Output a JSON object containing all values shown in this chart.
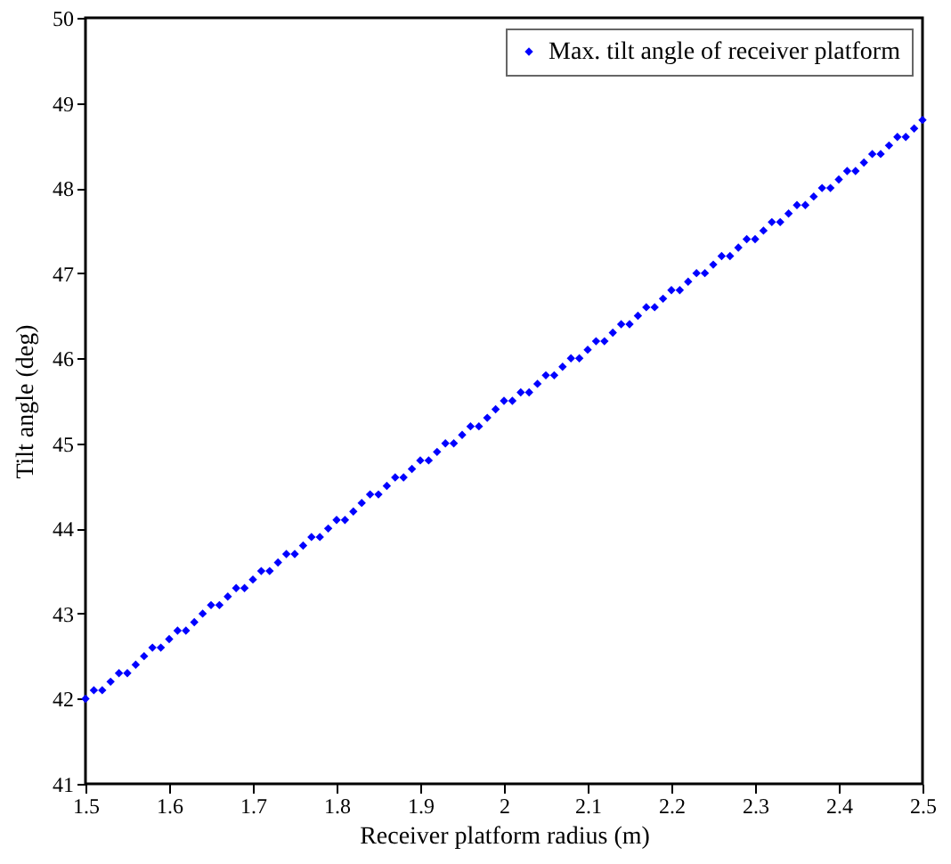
{
  "chart_data": {
    "type": "scatter",
    "xlabel": "Receiver platform radius (m)",
    "ylabel": "Tilt angle (deg)",
    "xlim": [
      1.5,
      2.5
    ],
    "xticks": [
      1.5,
      1.6,
      1.7,
      1.8,
      1.9,
      2,
      2.1,
      2.2,
      2.3,
      2.4,
      2.5
    ],
    "ylim": [
      41,
      50
    ],
    "yticks": [
      41,
      42,
      43,
      44,
      45,
      46,
      47,
      48,
      49,
      50
    ],
    "x": [
      1.5,
      1.51,
      1.52,
      1.53,
      1.54,
      1.55,
      1.56,
      1.57,
      1.58,
      1.59,
      1.6,
      1.61,
      1.62,
      1.63,
      1.64,
      1.65,
      1.66,
      1.67,
      1.68,
      1.69,
      1.7,
      1.71,
      1.72,
      1.73,
      1.74,
      1.75,
      1.76,
      1.77,
      1.78,
      1.79,
      1.8,
      1.81,
      1.82,
      1.83,
      1.84,
      1.85,
      1.86,
      1.87,
      1.88,
      1.89,
      1.9,
      1.91,
      1.92,
      1.93,
      1.94,
      1.95,
      1.96,
      1.97,
      1.98,
      1.99,
      2,
      2.01,
      2.02,
      2.03,
      2.04,
      2.05,
      2.06,
      2.07,
      2.08,
      2.09,
      2.1,
      2.11,
      2.12,
      2.13,
      2.14,
      2.15,
      2.16,
      2.17,
      2.18,
      2.19,
      2.2,
      2.21,
      2.22,
      2.23,
      2.24,
      2.25,
      2.26,
      2.27,
      2.28,
      2.29,
      2.3,
      2.31,
      2.32,
      2.33,
      2.34,
      2.35,
      2.36,
      2.37,
      2.38,
      2.39,
      2.4,
      2.41,
      2.42,
      2.43,
      2.44,
      2.45,
      2.46,
      2.47,
      2.48,
      2.49,
      2.5
    ],
    "series": [
      {
        "name": "Max. tilt angle of receiver platform",
        "color": "#0000ff",
        "values": [
          42.0,
          42.1,
          42.1,
          42.2,
          42.3,
          42.3,
          42.4,
          42.5,
          42.6,
          42.6,
          42.7,
          42.8,
          42.8,
          42.9,
          43.0,
          43.1,
          43.1,
          43.2,
          43.3,
          43.3,
          43.4,
          43.5,
          43.5,
          43.6,
          43.7,
          43.7,
          43.8,
          43.9,
          43.9,
          44.0,
          44.1,
          44.1,
          44.2,
          44.3,
          44.4,
          44.4,
          44.5,
          44.6,
          44.6,
          44.7,
          44.8,
          44.8,
          44.9,
          45.0,
          45.0,
          45.1,
          45.2,
          45.2,
          45.3,
          45.4,
          45.5,
          45.5,
          45.6,
          45.6,
          45.7,
          45.8,
          45.8,
          45.9,
          46.0,
          46.0,
          46.1,
          46.2,
          46.2,
          46.3,
          46.4,
          46.4,
          46.5,
          46.6,
          46.6,
          46.7,
          46.8,
          46.8,
          46.9,
          47.0,
          47.0,
          47.1,
          47.2,
          47.2,
          47.3,
          47.4,
          47.4,
          47.5,
          47.6,
          47.6,
          47.7,
          47.8,
          47.8,
          47.9,
          48.0,
          48.0,
          48.1,
          48.2,
          48.2,
          48.3,
          48.4,
          48.4,
          48.5,
          48.6,
          48.6,
          48.7,
          48.8
        ]
      }
    ],
    "marker": "diamond",
    "legend": "top right",
    "grid": false
  }
}
